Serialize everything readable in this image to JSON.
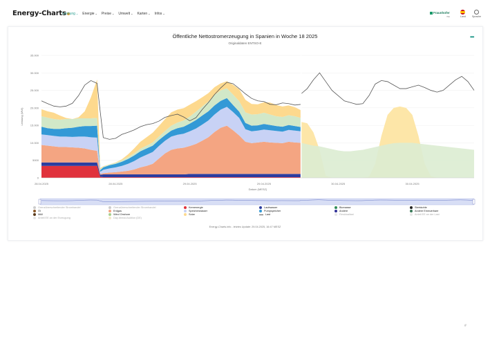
{
  "header": {
    "logo": "Energy-Charts",
    "nav": [
      {
        "label": "Leistung",
        "active": true
      },
      {
        "label": "Energie",
        "active": false
      },
      {
        "label": "Preise",
        "active": false
      },
      {
        "label": "Umwelt",
        "active": false
      },
      {
        "label": "Karten",
        "active": false
      },
      {
        "label": "Infos",
        "active": false
      }
    ],
    "brand": "Fraunhofer",
    "brand_sub": "ISE",
    "land_label": "Land",
    "sprache_label": "Sprache"
  },
  "chart_data": {
    "type": "area",
    "title": "Öffentliche Nettostromerzeugung in Spanien in Woche 18 2025",
    "subtitle": "Originaldaten ENTSO-E",
    "ylabel": "Leistung (MW)",
    "xlabel": "Datum (MESZ)",
    "ylim": [
      0,
      35000
    ],
    "yticks": [
      0,
      5000,
      10000,
      15000,
      20000,
      25000,
      30000,
      35000
    ],
    "ytick_labels": [
      "0",
      "5000",
      "10.000",
      "15.000",
      "20.000",
      "25.000",
      "30.000",
      "35.000"
    ],
    "xticks": [
      0,
      24,
      48,
      72,
      96,
      120
    ],
    "xtick_labels": [
      "28.04.2025",
      "28.04.2025",
      "29.04.2025",
      "29.04.2025",
      "30.04.2025",
      "30.04.2025"
    ],
    "x_hours": [
      0,
      2,
      4,
      6,
      8,
      10,
      12,
      14,
      16,
      18,
      19,
      20,
      22,
      24,
      26,
      28,
      30,
      32,
      34,
      36,
      38,
      40,
      42,
      44,
      46,
      48,
      50,
      52,
      54,
      56,
      58,
      60,
      62,
      64,
      66,
      68,
      70,
      72,
      74,
      76,
      78,
      80,
      82,
      84
    ],
    "series": [
      {
        "name": "Kernenergie",
        "color": "#e0323c",
        "values": [
          3400,
          3400,
          3400,
          3400,
          3400,
          3400,
          3400,
          3400,
          3400,
          3400,
          300,
          200,
          200,
          200,
          200,
          200,
          200,
          200,
          200,
          200,
          200,
          200,
          200,
          200,
          200,
          200,
          200,
          200,
          200,
          200,
          200,
          200,
          200,
          200,
          200,
          200,
          200,
          200,
          200,
          200,
          200,
          200,
          200,
          200
        ]
      },
      {
        "name": "Laufwasser",
        "color": "#2b3da0",
        "values": [
          1000,
          1000,
          1000,
          1000,
          1000,
          1000,
          1000,
          1000,
          1000,
          1000,
          600,
          800,
          800,
          800,
          800,
          800,
          800,
          800,
          800,
          800,
          800,
          800,
          800,
          800,
          800,
          900,
          900,
          900,
          900,
          900,
          900,
          900,
          900,
          900,
          900,
          900,
          900,
          900,
          900,
          900,
          900,
          900,
          900,
          900
        ]
      },
      {
        "name": "Erdgas",
        "color": "#f4a582",
        "values": [
          5000,
          4800,
          4600,
          4400,
          4400,
          4300,
          4200,
          4000,
          3600,
          3300,
          200,
          300,
          500,
          600,
          800,
          1000,
          1400,
          2000,
          2400,
          3000,
          4500,
          6000,
          7000,
          7400,
          7600,
          8000,
          8600,
          9500,
          10500,
          12000,
          13200,
          13800,
          12500,
          11000,
          9200,
          8800,
          9000,
          9200,
          9000,
          8900,
          8800,
          9200,
          9000,
          8900
        ]
      },
      {
        "name": "Speicherwasser",
        "color": "#c8d2f5",
        "values": [
          3000,
          3000,
          3000,
          3000,
          3000,
          3000,
          3200,
          3400,
          3600,
          3800,
          600,
          1000,
          1200,
          1400,
          1600,
          2000,
          2400,
          2800,
          3200,
          3400,
          3600,
          3600,
          3800,
          3900,
          4000,
          4200,
          4400,
          4600,
          4800,
          5000,
          5200,
          5400,
          5200,
          5000,
          3600,
          3400,
          3400,
          3500,
          3500,
          3400,
          3300,
          3400,
          3400,
          3300
        ]
      },
      {
        "name": "Pumpspeicher",
        "color": "#3399d6",
        "values": [
          2200,
          2000,
          2000,
          2200,
          2400,
          2600,
          2800,
          3000,
          3200,
          3400,
          500,
          700,
          900,
          1000,
          1200,
          1400,
          1600,
          1800,
          1800,
          1800,
          1700,
          1600,
          1700,
          1900,
          2000,
          2200,
          2400,
          2600,
          2600,
          2600,
          2500,
          2500,
          2000,
          1800,
          1800,
          1600,
          1500,
          1600,
          1500,
          1400,
          1400,
          1400,
          1300,
          1200
        ]
      },
      {
        "name": "Wind Onshore",
        "color": "#d2e8c8",
        "values": [
          3000,
          3000,
          2800,
          2600,
          2600,
          2500,
          2400,
          2200,
          2200,
          2200,
          200,
          200,
          200,
          300,
          400,
          500,
          600,
          700,
          800,
          900,
          1000,
          1200,
          1400,
          1600,
          1800,
          2000,
          2400,
          2600,
          2800,
          3000,
          3000,
          2800,
          3000,
          3000,
          3000,
          3200,
          3200,
          3200,
          3000,
          2800,
          2800,
          2800,
          2800,
          2600
        ]
      },
      {
        "name": "Solar",
        "color": "#fdd98e",
        "values": [
          2000,
          1800,
          1800,
          1200,
          300,
          0,
          300,
          2000,
          6000,
          11000,
          400,
          100,
          50,
          100,
          300,
          800,
          1400,
          2000,
          2400,
          2800,
          3000,
          3400,
          3800,
          3700,
          3500,
          3400,
          3000,
          2600,
          2400,
          2200,
          2000,
          2000,
          2800,
          3400,
          3600,
          3000,
          2800,
          3000,
          3400,
          3200,
          3000,
          2800,
          2600,
          2200
        ]
      }
    ],
    "load": {
      "name": "Last",
      "color": "#555555",
      "values": [
        22000,
        21200,
        20500,
        20300,
        20500,
        21300,
        23500,
        26500,
        27800,
        27000,
        19000,
        11500,
        11000,
        11300,
        12400,
        13000,
        13700,
        14600,
        15200,
        15500,
        16200,
        17300,
        17800,
        18200,
        17400,
        16300,
        17200,
        19500,
        21500,
        23800,
        25700,
        27300,
        26900,
        25500,
        24000,
        22700,
        22000,
        21800,
        21000,
        20900,
        21400,
        21200,
        20800,
        21000
      ]
    },
    "forecast_x_hours": [
      84,
      86,
      88,
      90,
      92,
      94,
      96,
      98,
      100,
      102,
      104,
      106,
      108,
      110,
      112,
      114,
      116,
      118,
      120,
      122,
      124,
      126,
      128,
      130,
      132,
      134,
      136,
      138,
      140
    ],
    "forecast_wind": [
      10000,
      9600,
      9200,
      9000,
      8600,
      8200,
      7800,
      7600,
      7600,
      7800,
      8000,
      8400,
      8800,
      9200,
      9600,
      9900,
      10000,
      10000,
      10000,
      9800,
      9600,
      9400,
      9200,
      9000,
      8800,
      8600,
      8400,
      8200,
      8000
    ],
    "forecast_solar": [
      16000,
      15600,
      13000,
      8000,
      600,
      0,
      0,
      0,
      0,
      0,
      0,
      300,
      4000,
      12000,
      18000,
      20000,
      20400,
      20000,
      18000,
      12000,
      4000,
      500,
      0,
      0,
      0,
      0,
      0,
      0,
      0
    ],
    "forecast_load": [
      24000,
      25500,
      28000,
      30000,
      27500,
      25000,
      23500,
      22000,
      21500,
      21000,
      21200,
      23500,
      26800,
      27800,
      27500,
      26500,
      25500,
      25500,
      26000,
      26500,
      25800,
      25000,
      24500,
      25000,
      26500,
      28000,
      29000,
      27500,
      25000
    ],
    "x_max_hours": 140
  },
  "legend": [
    {
      "label": "Grenzüberschreitender Stromhandel",
      "color": "#cccccc",
      "dim": true,
      "line": false
    },
    {
      "label": "Grenzüberschreitender Stromhandel",
      "color": "#cccccc",
      "dim": true,
      "line": false
    },
    {
      "label": "Kernenergie",
      "color": "#e0323c",
      "dim": false,
      "line": false
    },
    {
      "label": "Laufwasser",
      "color": "#2b3da0",
      "dim": false,
      "line": false
    },
    {
      "label": "Biomasse",
      "color": "#2e8b57",
      "dim": false,
      "line": false
    },
    {
      "label": "Steinkohle",
      "color": "#222222",
      "dim": false,
      "line": false
    },
    {
      "label": "Öl",
      "color": "#8b5a2b",
      "dim": false,
      "line": false
    },
    {
      "label": "Erdgas",
      "color": "#f4a582",
      "dim": false,
      "line": false
    },
    {
      "label": "Speicherwasser",
      "color": "#c8d2f5",
      "dim": false,
      "line": false
    },
    {
      "label": "Pumpspeicher",
      "color": "#3399d6",
      "dim": false,
      "line": false
    },
    {
      "label": "Andere",
      "color": "#333399",
      "dim": false,
      "line": false
    },
    {
      "label": "Andere Erneuerbare",
      "color": "#3a7a5a",
      "dim": false,
      "line": false
    },
    {
      "label": "Müll",
      "color": "#5a3a1a",
      "dim": false,
      "line": false
    },
    {
      "label": "Wind Onshore",
      "color": "#a8d08d",
      "dim": false,
      "line": false
    },
    {
      "label": "Solar",
      "color": "#fdd98e",
      "dim": false,
      "line": false
    },
    {
      "label": "Last",
      "color": "#555555",
      "dim": false,
      "line": true
    },
    {
      "label": "Residuallast",
      "color": "#e6e6e6",
      "dim": true,
      "line": false
    },
    {
      "label": "Anteil EE an der Last",
      "color": "#e6e6e6",
      "dim": true,
      "line": false
    },
    {
      "label": "Anteil EE an der Erzeugung",
      "color": "#e6e6e6",
      "dim": true,
      "line": false
    },
    {
      "label": "Day Ahead Auktion (DE)",
      "color": "#f3e8c8",
      "dim": true,
      "line": false
    }
  ],
  "footer": "Energy-Charts.info - letztes Update: 29.04.2025, 16:47 MESZ",
  "corner": "#"
}
